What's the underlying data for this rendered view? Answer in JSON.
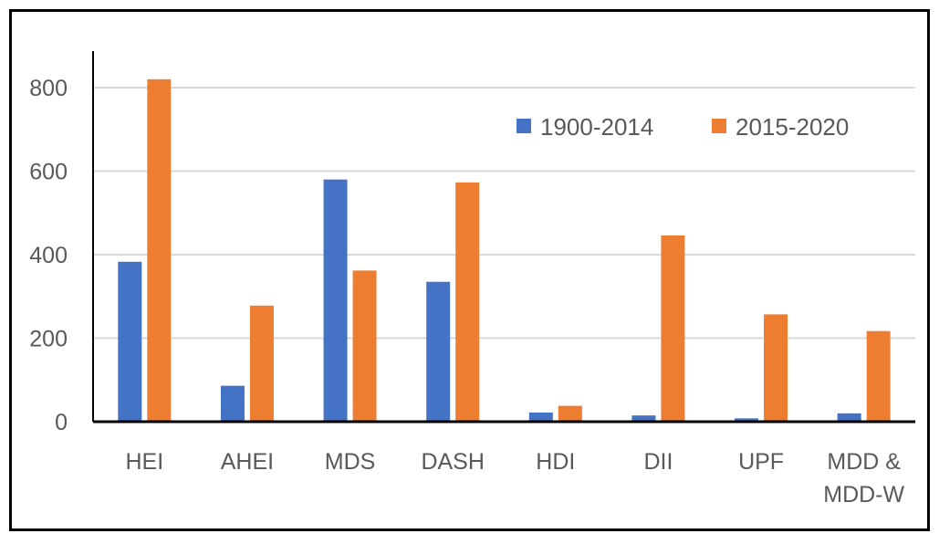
{
  "chart_data": {
    "type": "bar",
    "categories": [
      "HEI",
      "AHEI",
      "MDS",
      "DASH",
      "HDI",
      "DII",
      "UPF",
      "MDD & MDD-W"
    ],
    "category_lines": [
      [
        "HEI"
      ],
      [
        "AHEI"
      ],
      [
        "MDS"
      ],
      [
        "DASH"
      ],
      [
        "HDI"
      ],
      [
        "DII"
      ],
      [
        "UPF"
      ],
      [
        "MDD &",
        "MDD-W"
      ]
    ],
    "series": [
      {
        "name": "1900-2014",
        "color": "#4472C4",
        "values": [
          383,
          86,
          580,
          335,
          22,
          15,
          8,
          20
        ]
      },
      {
        "name": "2015-2020",
        "color": "#ED7D31",
        "values": [
          820,
          278,
          362,
          573,
          38,
          446,
          257,
          217
        ]
      }
    ],
    "yticks": [
      "0",
      "200",
      "400",
      "600",
      "800"
    ],
    "ylim": [
      0,
      880
    ],
    "grid": true,
    "legend_position": "top-right"
  }
}
